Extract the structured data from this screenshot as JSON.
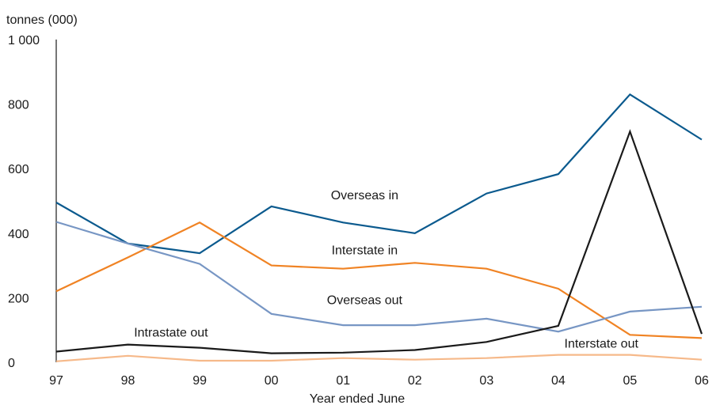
{
  "chart_data": {
    "type": "line",
    "title": "",
    "ylabel": "tonnes (000)",
    "xlabel": "Year ended June",
    "categories": [
      "97",
      "98",
      "99",
      "00",
      "01",
      "02",
      "03",
      "04",
      "05",
      "06"
    ],
    "ylim": [
      0,
      1000
    ],
    "yticks": [
      0,
      200,
      400,
      600,
      800,
      1000
    ],
    "ytick_labels": [
      "0",
      "200",
      "400",
      "600",
      "800",
      "1 000"
    ],
    "grid": false,
    "legend": "inline-labels",
    "series": [
      {
        "name": "Overseas in",
        "color": "#0b5a8e",
        "values": [
          495,
          368,
          338,
          483,
          433,
          400,
          523,
          583,
          830,
          690
        ]
      },
      {
        "name": "Interstate in",
        "color": "#f08324",
        "values": [
          220,
          325,
          433,
          300,
          290,
          308,
          290,
          228,
          85,
          75
        ]
      },
      {
        "name": "Overseas out",
        "color": "#7796c4",
        "values": [
          435,
          368,
          305,
          150,
          115,
          115,
          135,
          95,
          157,
          172
        ]
      },
      {
        "name": "Intrastate out",
        "color": "#1a1a1a",
        "values": [
          33,
          55,
          45,
          28,
          30,
          38,
          63,
          113,
          715,
          88
        ]
      },
      {
        "name": "Interstate out",
        "color": "#f6b98a",
        "values": [
          3,
          20,
          5,
          5,
          13,
          8,
          13,
          23,
          23,
          8
        ]
      }
    ]
  }
}
